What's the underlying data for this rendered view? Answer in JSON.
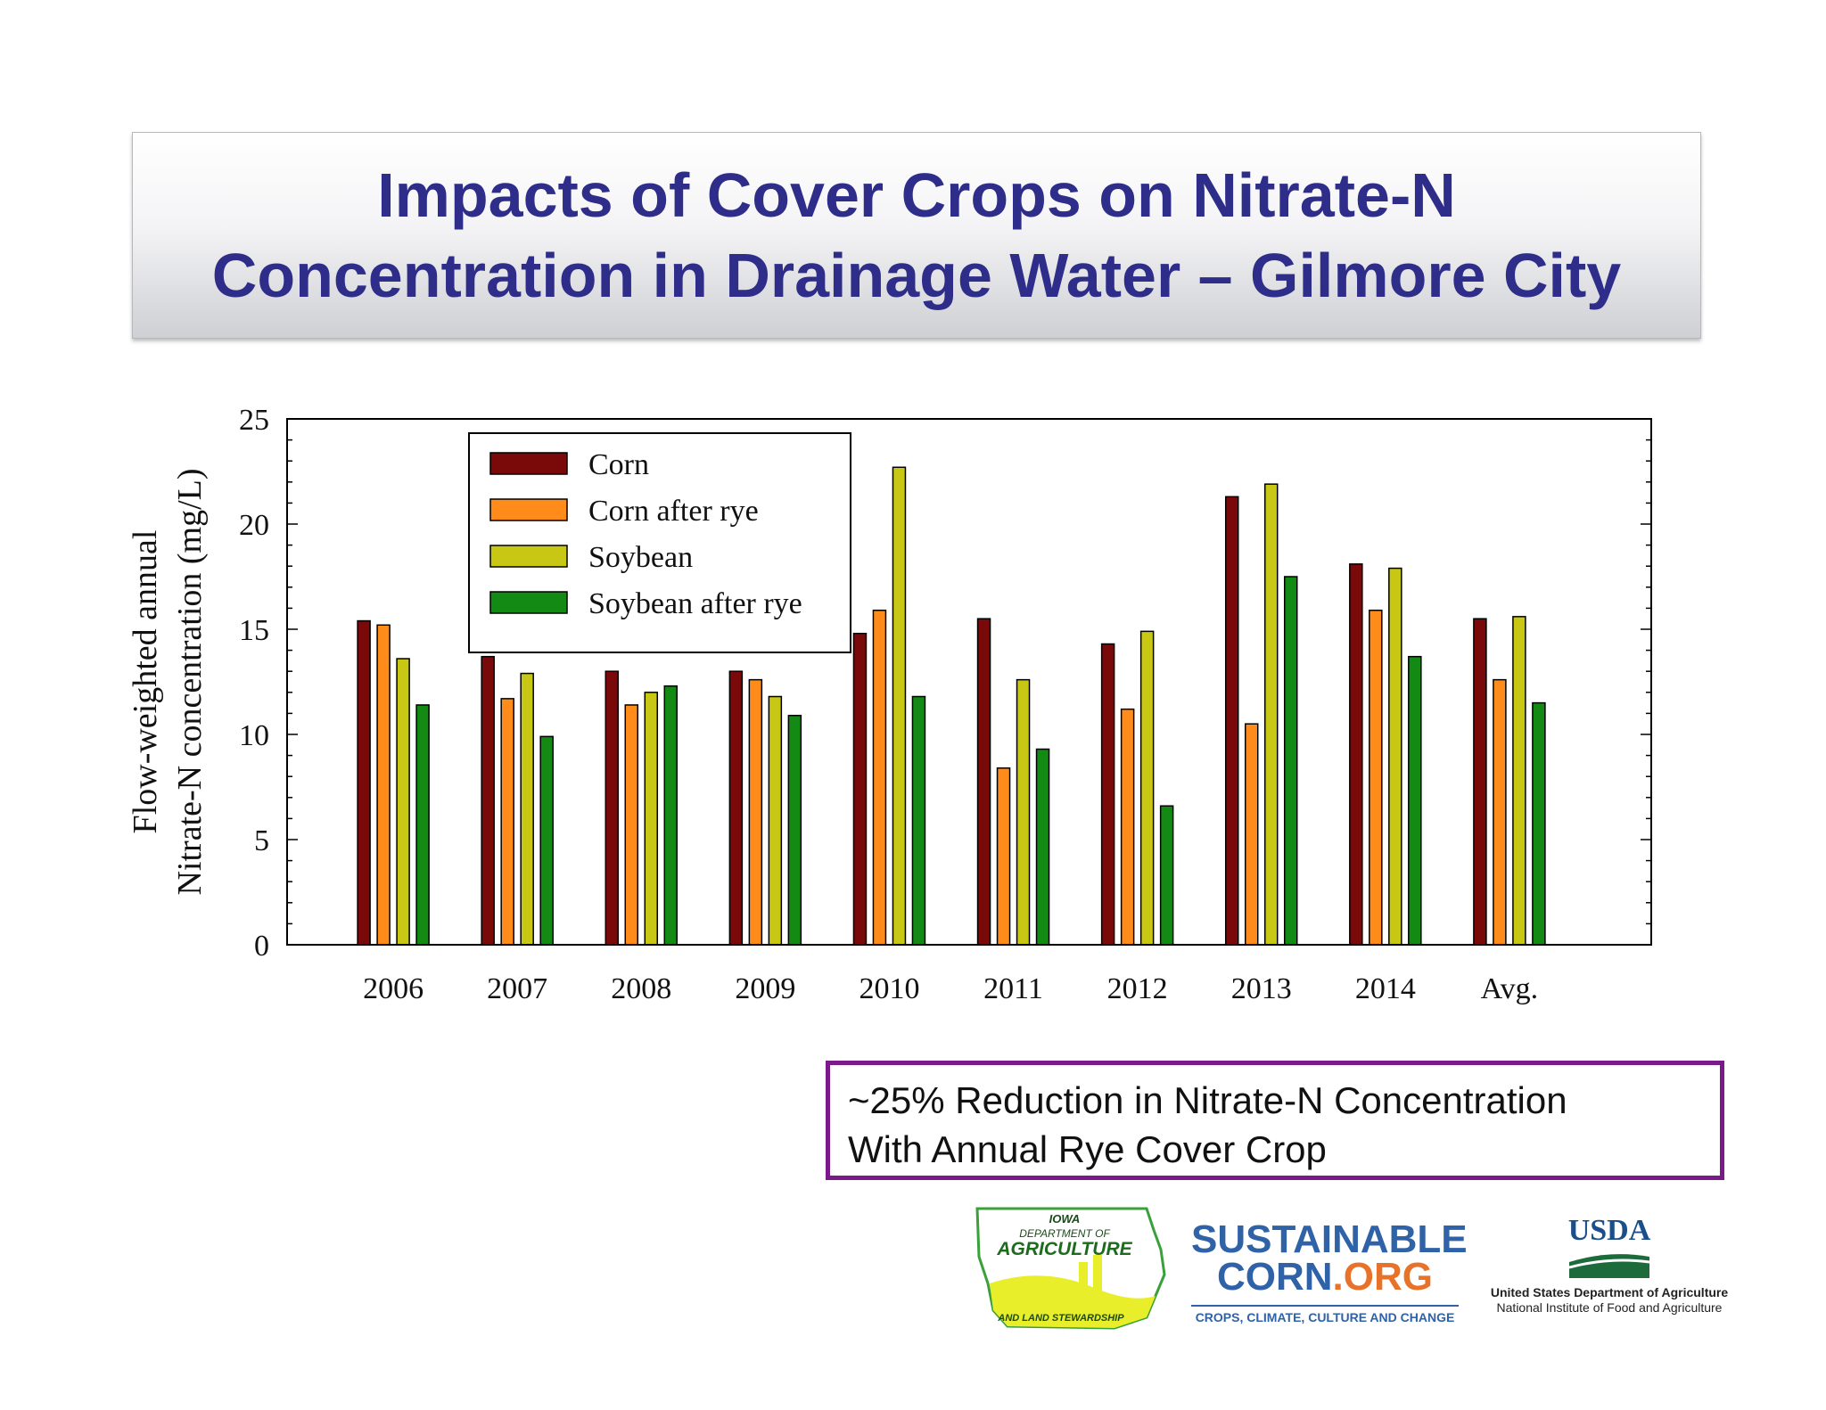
{
  "title": {
    "line1": "Impacts of Cover Crops on Nitrate-N",
    "line2": "Concentration in Drainage Water – Gilmore City"
  },
  "chart_data": {
    "type": "bar",
    "ylabel_line1": "Flow-weighted annual",
    "ylabel_line2": "Nitrate-N concentration (mg/L)",
    "xlabel": "",
    "ylim": [
      0,
      25
    ],
    "yticks": [
      0,
      5,
      10,
      15,
      20,
      25
    ],
    "grid": false,
    "legend_position": "top-left",
    "categories": [
      "2006",
      "2007",
      "2008",
      "2009",
      "2010",
      "2011",
      "2012",
      "2013",
      "2014",
      "Avg."
    ],
    "series": [
      {
        "name": "Corn",
        "color": "#7a0a0a",
        "values": [
          15.4,
          13.7,
          13.0,
          13.0,
          14.8,
          15.5,
          14.3,
          21.3,
          18.1,
          15.5
        ]
      },
      {
        "name": "Corn after rye",
        "color": "#ff8c1a",
        "values": [
          15.2,
          11.7,
          11.4,
          12.6,
          15.9,
          8.4,
          11.2,
          10.5,
          15.9,
          12.6
        ]
      },
      {
        "name": "Soybean",
        "color": "#c8c814",
        "values": [
          13.6,
          12.9,
          12.0,
          11.8,
          22.7,
          12.6,
          14.9,
          21.9,
          17.9,
          15.6
        ]
      },
      {
        "name": "Soybean after rye",
        "color": "#138a13",
        "values": [
          11.4,
          9.9,
          12.3,
          10.9,
          11.8,
          9.3,
          6.6,
          17.5,
          13.7,
          11.5
        ]
      }
    ]
  },
  "callout": {
    "line1": "~25% Reduction in Nitrate-N Concentration",
    "line2": "With Annual Rye Cover Crop"
  },
  "logos": {
    "iowa": {
      "line1": "IOWA",
      "line2": "DEPARTMENT OF",
      "line3": "AGRICULTURE",
      "line4": "AND LAND STEWARDSHIP"
    },
    "sustainable_corn": {
      "line1": "SUSTAINABLE",
      "line2_a": "CORN",
      "line2_b": ".ORG",
      "tagline": "CROPS, CLIMATE, CULTURE AND CHANGE"
    },
    "usda": {
      "mark": "USDA",
      "line1": "United States Department of Agriculture",
      "line2": "National Institute of Food and Agriculture"
    }
  }
}
